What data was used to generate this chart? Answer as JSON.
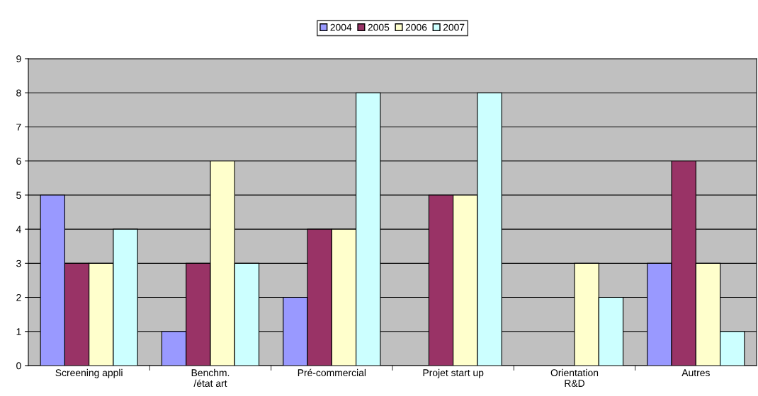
{
  "chart_data": {
    "type": "bar",
    "categories": [
      "Screening appli",
      "Benchm.\n/état art",
      "Pré-commercial",
      "Projet start up",
      "Orientation\nR&D",
      "Autres"
    ],
    "series": [
      {
        "name": "2004",
        "color": "#9999ff",
        "values": [
          5,
          1,
          2,
          null,
          null,
          3
        ]
      },
      {
        "name": "2005",
        "color": "#993366",
        "values": [
          3,
          3,
          4,
          5,
          null,
          6
        ]
      },
      {
        "name": "2006",
        "color": "#ffffcc",
        "values": [
          3,
          6,
          4,
          5,
          3,
          3
        ]
      },
      {
        "name": "2007",
        "color": "#ccffff",
        "values": [
          4,
          3,
          8,
          8,
          2,
          1
        ]
      }
    ],
    "ylim": [
      0,
      9
    ],
    "yticks": [
      0,
      1,
      2,
      3,
      4,
      5,
      6,
      7,
      8,
      9
    ],
    "grid": "y",
    "legend": "top"
  }
}
